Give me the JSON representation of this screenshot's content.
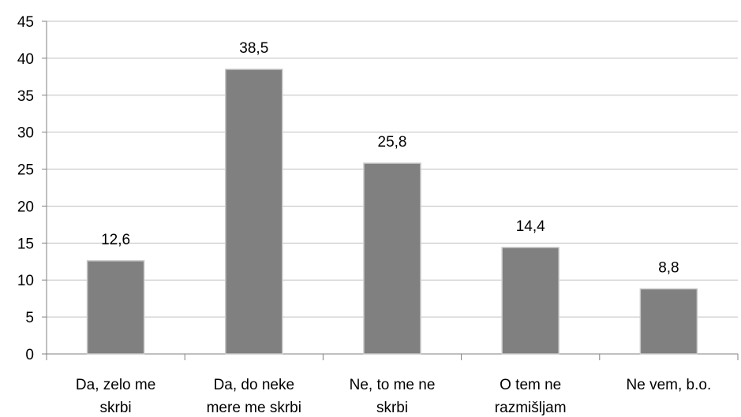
{
  "chart_data": {
    "type": "bar",
    "categories": [
      [
        "Da, zelo me",
        "skrbi"
      ],
      [
        "Da, do neke",
        "mere me skrbi"
      ],
      [
        "Ne, to me ne",
        "skrbi"
      ],
      [
        "O tem ne",
        "razmišljam"
      ],
      [
        "Ne vem, b.o."
      ]
    ],
    "values": [
      12.6,
      38.5,
      25.8,
      14.4,
      8.8
    ],
    "value_labels": [
      "12,6",
      "38,5",
      "25,8",
      "14,4",
      "8,8"
    ],
    "ylim": [
      0,
      45
    ],
    "yticks": [
      0,
      5,
      10,
      15,
      20,
      25,
      30,
      35,
      40,
      45
    ],
    "grid": true,
    "legend": "none",
    "title": "",
    "xlabel": "",
    "ylabel": "",
    "colors": {
      "bar_fill": "#808080",
      "bar_stroke": "#c8c8c8",
      "grid": "#c0c0c0",
      "axis": "#808080"
    }
  }
}
